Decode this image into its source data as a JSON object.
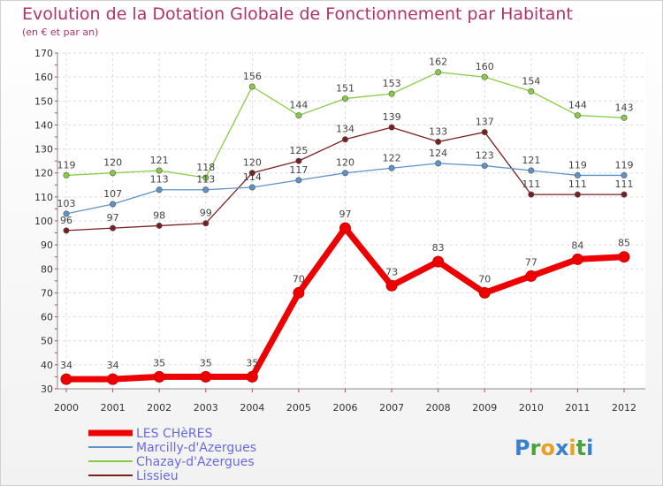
{
  "chart_data": {
    "type": "line",
    "title": "Evolution de la Dotation Globale de Fonctionnement par Habitant",
    "subtitle": "(en € et par an)",
    "xlabel": "",
    "ylabel": "",
    "ylim": [
      30,
      170
    ],
    "yticks": [
      30,
      40,
      50,
      60,
      70,
      80,
      90,
      100,
      110,
      120,
      130,
      140,
      150,
      160,
      170
    ],
    "x": [
      "2000",
      "2001",
      "2002",
      "2003",
      "2004",
      "2005",
      "2006",
      "2007",
      "2008",
      "2009",
      "2010",
      "2011",
      "2012"
    ],
    "grid": true,
    "legend_position": "bottom-left",
    "series": [
      {
        "name": "Chazay-d'Azergues",
        "color": "#88cc44",
        "values": [
          119,
          120,
          121,
          118,
          156,
          144,
          151,
          153,
          162,
          160,
          154,
          144,
          143
        ]
      },
      {
        "name": "Lissieu",
        "color": "#7a1f1f",
        "values": [
          96,
          97,
          98,
          99,
          120,
          125,
          134,
          139,
          133,
          137,
          111,
          111,
          111
        ]
      },
      {
        "name": "Marcilly-d'Azergues",
        "color": "#5d93c9",
        "values": [
          103,
          107,
          113,
          113,
          114,
          117,
          120,
          122,
          124,
          123,
          121,
          119,
          119
        ]
      },
      {
        "name": "LES CHèRES",
        "color": "#ee0000",
        "values": [
          34,
          34,
          35,
          35,
          35,
          70,
          97,
          73,
          83,
          70,
          77,
          84,
          85
        ]
      }
    ],
    "legend_order": [
      "LES CHèRES",
      "Marcilly-d'Azergues",
      "Chazay-d'Azergues",
      "Lissieu"
    ]
  },
  "logo": {
    "letters": [
      "P",
      "r",
      "o",
      "x",
      "i",
      "t",
      "i"
    ],
    "colors": [
      "#3a7fd0",
      "#4aa23a",
      "#e8a020",
      "#3a7fd0",
      "#e8a020",
      "#4aa23a",
      "#3a7fd0"
    ]
  }
}
